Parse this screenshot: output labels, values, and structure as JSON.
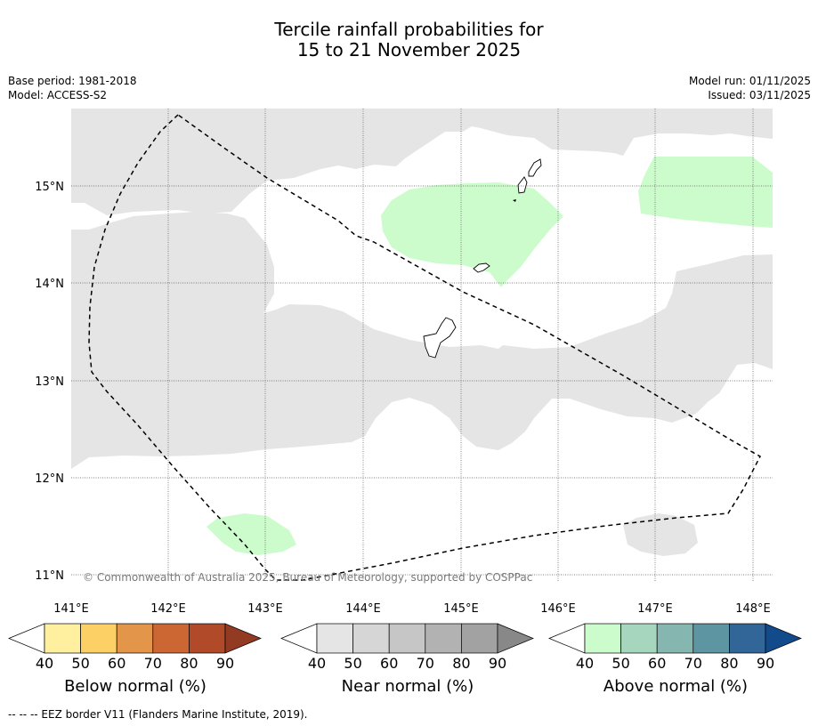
{
  "title": {
    "line1": "Tercile rainfall probabilities for",
    "line2": "15 to 21 November 2025"
  },
  "meta": {
    "base_period": "Base period: 1981-2018",
    "model": "Model: ACCESS-S2",
    "model_run": "Model run: 01/11/2025",
    "issued": "Issued: 03/11/2025"
  },
  "map": {
    "lat_labels": [
      "15°N",
      "14°N",
      "13°N",
      "12°N",
      "11°N"
    ],
    "lon_labels": [
      "141°E",
      "142°E",
      "143°E",
      "144°E",
      "145°E",
      "146°E",
      "147°E",
      "148°E"
    ],
    "copyright": "© Commonwealth of Australia 2025, Bureau of Meteorology, supported by COSPPac",
    "colors": {
      "near_normal_40": "#e5e5e5",
      "above_normal_40": "#ccfccc",
      "land": "#ffffff",
      "coast": "#000000",
      "eez": "#000000"
    }
  },
  "colorbars": [
    {
      "label": "Below normal (%)",
      "ticks": [
        "40",
        "50",
        "60",
        "70",
        "80",
        "90"
      ],
      "colors": [
        "#ffffff",
        "#fff0a0",
        "#fdd065",
        "#e3954a",
        "#cc6633",
        "#b04a28",
        "#923a22"
      ]
    },
    {
      "label": "Near normal (%)",
      "ticks": [
        "40",
        "50",
        "60",
        "70",
        "80",
        "90"
      ],
      "colors": [
        "#ffffff",
        "#e5e5e5",
        "#d6d6d6",
        "#c6c6c6",
        "#b2b2b2",
        "#a2a2a2",
        "#888888"
      ]
    },
    {
      "label": "Above normal (%)",
      "ticks": [
        "40",
        "50",
        "60",
        "70",
        "80",
        "90"
      ],
      "colors": [
        "#ffffff",
        "#ccfccc",
        "#a6d7be",
        "#86b6b0",
        "#5e95a3",
        "#336698",
        "#124b8c"
      ]
    }
  ],
  "footer": "--  --  -- EEZ border V11 (Flanders Marine Institute, 2019)."
}
